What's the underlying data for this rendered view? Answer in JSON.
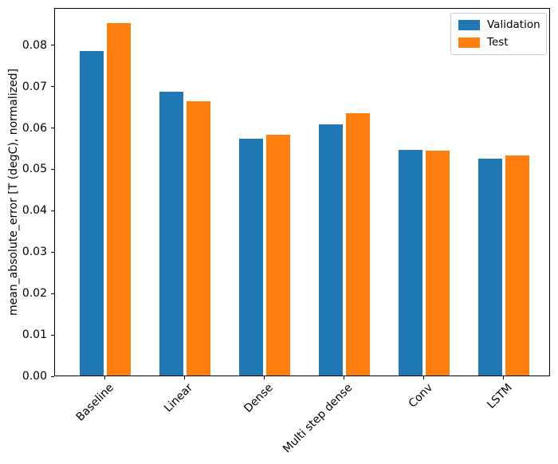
{
  "chart_data": {
    "type": "bar",
    "title": "",
    "xlabel": "",
    "ylabel": "mean_absolute_error [T (degC), normalized]",
    "categories": [
      "Baseline",
      "Linear",
      "Dense",
      "Multi step dense",
      "Conv",
      "LSTM"
    ],
    "series": [
      {
        "name": "Validation",
        "color": "#1f77b4",
        "values": [
          0.0785,
          0.0686,
          0.0572,
          0.0606,
          0.0545,
          0.0524
        ]
      },
      {
        "name": "Test",
        "color": "#ff7f0e",
        "values": [
          0.0852,
          0.0662,
          0.0581,
          0.0633,
          0.0543,
          0.0532
        ]
      }
    ],
    "ylim": [
      0,
      0.089
    ],
    "yticks": [
      "0.00",
      "0.01",
      "0.02",
      "0.03",
      "0.04",
      "0.05",
      "0.06",
      "0.07",
      "0.08"
    ],
    "x_tick_rotation": 45,
    "grid": false,
    "legend_position": "upper right",
    "spine_color": "#000000",
    "background_color": "#ffffff"
  }
}
